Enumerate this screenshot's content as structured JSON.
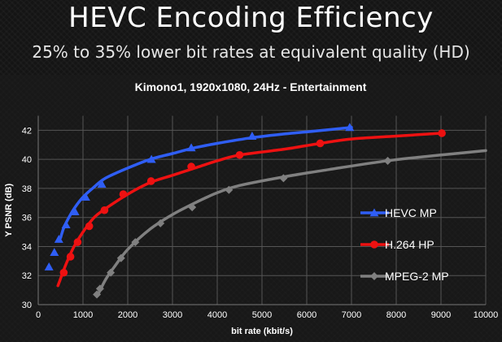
{
  "slide": {
    "title": "HEVC Encoding Efficiency",
    "subtitle": "25% to 35% lower bit rates at equivalent quality (HD)"
  },
  "colors": {
    "hevc": "#2f5ef5",
    "h264": "#ee1111",
    "mpeg2": "#808080",
    "grid": "#555555",
    "text": "#ffffff"
  },
  "chart_data": {
    "type": "line",
    "title": "Kimono1, 1920x1080, 24Hz - Entertainment",
    "xlabel": "bit rate (kbit/s)",
    "ylabel": "Y PSNR (dB)",
    "xlim": [
      0,
      10000
    ],
    "ylim": [
      30,
      43
    ],
    "xticks": [
      0,
      1000,
      2000,
      3000,
      4000,
      5000,
      6000,
      7000,
      8000,
      9000,
      10000
    ],
    "yticks": [
      30,
      32,
      34,
      36,
      38,
      40,
      42
    ],
    "grid": true,
    "legend_position": "right",
    "series": [
      {
        "name": "HEVC MP",
        "color_key": "hevc",
        "marker": "triangle",
        "curve_x": [
          500,
          560,
          650,
          800,
          1000,
          1250,
          1500,
          2000,
          2500,
          3000,
          3500,
          4000,
          4800,
          5500,
          6200,
          7000
        ],
        "curve_y": [
          34.6,
          35.2,
          35.8,
          36.6,
          37.4,
          38.1,
          38.7,
          39.4,
          40.0,
          40.4,
          40.8,
          41.1,
          41.5,
          41.75,
          41.95,
          42.2
        ],
        "markers_x": [
          240,
          360,
          460,
          620,
          820,
          1060,
          1420,
          2530,
          3420,
          4780,
          6960
        ],
        "markers_y": [
          32.6,
          33.6,
          34.5,
          35.5,
          36.4,
          37.4,
          38.3,
          40.0,
          40.8,
          41.6,
          42.2
        ]
      },
      {
        "name": "H.264 HP",
        "color_key": "h264",
        "marker": "circle",
        "curve_x": [
          440,
          500,
          560,
          650,
          800,
          1000,
          1250,
          1500,
          2000,
          2500,
          3000,
          3500,
          4000,
          4500,
          5500,
          6300,
          7000,
          8000,
          9000
        ],
        "curve_y": [
          31.3,
          31.8,
          32.3,
          33.0,
          34.0,
          35.0,
          36.0,
          36.6,
          37.6,
          38.4,
          38.9,
          39.4,
          39.9,
          40.3,
          40.7,
          41.1,
          41.4,
          41.6,
          41.8
        ],
        "markers_x": [
          570,
          720,
          880,
          1140,
          1480,
          1900,
          2520,
          3420,
          4500,
          6300,
          9020
        ],
        "markers_y": [
          32.2,
          33.3,
          34.3,
          35.4,
          36.5,
          37.6,
          38.5,
          39.5,
          40.3,
          41.1,
          41.8
        ]
      },
      {
        "name": "MPEG-2 MP",
        "color_key": "mpeg2",
        "marker": "diamond",
        "curve_x": [
          1320,
          1400,
          1520,
          1700,
          2000,
          2500,
          3000,
          3500,
          4000,
          4500,
          5500,
          6500,
          7800,
          9000,
          10000
        ],
        "curve_y": [
          30.6,
          31.1,
          31.8,
          32.6,
          33.8,
          35.2,
          36.2,
          37.0,
          37.7,
          38.2,
          38.8,
          39.3,
          39.9,
          40.3,
          40.6
        ],
        "markers_x": [
          1310,
          1380,
          1620,
          1850,
          2170,
          2730,
          3440,
          4260,
          5480,
          7810
        ],
        "markers_y": [
          30.7,
          31.1,
          32.2,
          33.2,
          34.3,
          35.6,
          36.7,
          37.9,
          38.7,
          39.9
        ]
      }
    ]
  }
}
